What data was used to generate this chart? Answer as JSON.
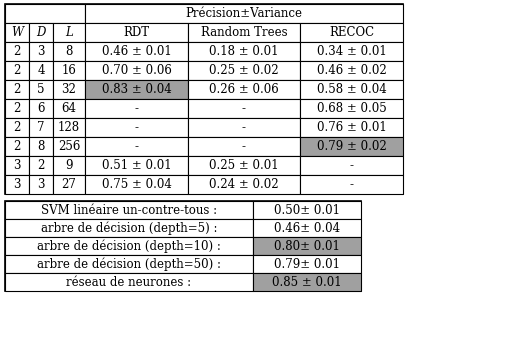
{
  "title": "Précision±Variance",
  "col_headers": [
    "W",
    "D",
    "L",
    "RDT",
    "Random Trees",
    "RECOC"
  ],
  "rows": [
    [
      "2",
      "3",
      "8",
      "0.46 ± 0.01",
      "0.18 ± 0.01",
      "0.34 ± 0.01"
    ],
    [
      "2",
      "4",
      "16",
      "0.70 ± 0.06",
      "0.25 ± 0.02",
      "0.46 ± 0.02"
    ],
    [
      "2",
      "5",
      "32",
      "0.83 ± 0.04",
      "0.26 ± 0.06",
      "0.58 ± 0.04"
    ],
    [
      "2",
      "6",
      "64",
      "-",
      "-",
      "0.68 ± 0.05"
    ],
    [
      "2",
      "7",
      "128",
      "-",
      "-",
      "0.76 ± 0.01"
    ],
    [
      "2",
      "8",
      "256",
      "-",
      "-",
      "0.79 ± 0.02"
    ],
    [
      "3",
      "2",
      "9",
      "0.51 ± 0.01",
      "0.25 ± 0.01",
      "-"
    ],
    [
      "3",
      "3",
      "27",
      "0.75 ± 0.04",
      "0.24 ± 0.02",
      "-"
    ]
  ],
  "row_highlights": {
    "2": {
      "col": 3,
      "color": "#a0a0a0"
    },
    "5": {
      "col": 5,
      "color": "#a0a0a0"
    }
  },
  "bottom_rows": [
    [
      "SVM linéaire un-contre-tous :",
      "0.50± 0.01"
    ],
    [
      "arbre de décision (depth=5) :",
      "0.46± 0.04"
    ],
    [
      "arbre de décision (depth=10) :",
      "0.80± 0.01"
    ],
    [
      "arbre de décision (depth=50) :",
      "0.79± 0.01"
    ],
    [
      "réseau de neurones :",
      "0.85 ± 0.01"
    ]
  ],
  "bot_val_highlights": {
    "2": "#a0a0a0",
    "4": "#a0a0a0"
  },
  "highlight_grey": "#a0a0a0",
  "bg_white": "#ffffff",
  "border_color": "#000000",
  "font_size": 8.5,
  "fig_width": 5.19,
  "fig_height": 3.37,
  "dpi": 100
}
